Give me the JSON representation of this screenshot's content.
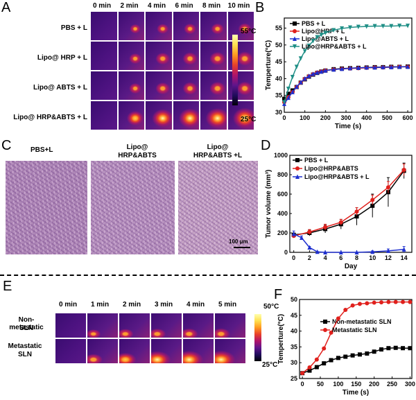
{
  "panels": {
    "A": {
      "label": "A",
      "times": [
        "0 min",
        "2 min",
        "4 min",
        "6 min",
        "8 min",
        "10 min"
      ],
      "rows": [
        "PBS + L",
        "Lipo@ HRP + L",
        "Lipo@ ABTS + L",
        "Lipo@ HRP&ABTS + L"
      ],
      "scale_max": "55°C",
      "scale_min": "25°C"
    },
    "B": {
      "label": "B"
    },
    "C": {
      "label": "C",
      "titles": [
        "PBS+L",
        "Lipo@\nHRP&ABTS",
        "Lipo@\nHRP&ABTS +L"
      ],
      "title1": "PBS+L",
      "title2a": "Lipo@",
      "title2b": "HRP&ABTS",
      "title3a": "Lipo@",
      "title3b": "HRP&ABTS +L",
      "scalebar": "100 μm"
    },
    "D": {
      "label": "D"
    },
    "E": {
      "label": "E",
      "times": [
        "0 min",
        "1 min",
        "2 min",
        "3 min",
        "4 min",
        "5 min"
      ],
      "row1a": "Non-metastatic",
      "row1b": "SLN",
      "row2a": "Metastatic",
      "row2b": "SLN",
      "scale_max": "50°C",
      "scale_min": "25°C"
    },
    "F": {
      "label": "F"
    }
  },
  "chart_data": [
    {
      "id": "B",
      "type": "line",
      "xlabel": "Time (s)",
      "ylabel": "Temperture(°C)",
      "xlim": [
        0,
        620
      ],
      "ylim": [
        30,
        58
      ],
      "xticks": [
        0,
        100,
        200,
        300,
        400,
        500,
        600
      ],
      "yticks": [
        30,
        35,
        40,
        45,
        50,
        55
      ],
      "legend": "top-right",
      "series": [
        {
          "name": "PBS + L",
          "color": "#000000",
          "marker": "square",
          "x": [
            0,
            20,
            40,
            60,
            80,
            100,
            120,
            140,
            160,
            180,
            200,
            240,
            280,
            320,
            360,
            400,
            440,
            480,
            520,
            560,
            600
          ],
          "y": [
            34,
            35.5,
            36.5,
            37.5,
            38.8,
            39.8,
            40.6,
            41.2,
            41.7,
            42.1,
            42.4,
            42.8,
            43.0,
            43.1,
            43.2,
            43.3,
            43.4,
            43.4,
            43.5,
            43.5,
            43.6
          ]
        },
        {
          "name": "Lipo@HRP + L",
          "color": "#e0201c",
          "marker": "circle",
          "x": [
            0,
            20,
            40,
            60,
            80,
            100,
            120,
            140,
            160,
            180,
            200,
            240,
            280,
            320,
            360,
            400,
            440,
            480,
            520,
            560,
            600
          ],
          "y": [
            33,
            34.5,
            36,
            37.5,
            38.8,
            39.9,
            40.7,
            41.3,
            41.8,
            42.1,
            42.4,
            42.7,
            42.9,
            43.0,
            43.1,
            43.2,
            43.3,
            43.3,
            43.4,
            43.5,
            43.5
          ]
        },
        {
          "name": "Lipo@ABTS + L",
          "color": "#1e2fcf",
          "marker": "triangle",
          "x": [
            0,
            20,
            40,
            60,
            80,
            100,
            120,
            140,
            160,
            180,
            200,
            240,
            280,
            320,
            360,
            400,
            440,
            480,
            520,
            560,
            600
          ],
          "y": [
            32.5,
            34.3,
            36,
            37.6,
            38.9,
            40,
            40.8,
            41.4,
            41.8,
            42.1,
            42.4,
            42.7,
            42.9,
            43.1,
            43.2,
            43.3,
            43.3,
            43.4,
            43.4,
            43.5,
            43.5
          ]
        },
        {
          "name": "Lipo@HRP&ABTS + L",
          "color": "#1f8f86",
          "marker": "triangle-down",
          "x": [
            0,
            20,
            40,
            60,
            80,
            100,
            120,
            140,
            160,
            180,
            200,
            240,
            280,
            320,
            360,
            400,
            440,
            480,
            520,
            560,
            600
          ],
          "y": [
            33,
            37,
            40.5,
            43.5,
            46,
            48.2,
            49.8,
            51.2,
            52.3,
            53,
            53.6,
            54.4,
            54.9,
            55.2,
            55.4,
            55.5,
            55.6,
            55.6,
            55.6,
            55.7,
            55.7
          ]
        }
      ]
    },
    {
      "id": "D",
      "type": "line",
      "xlabel": "Day",
      "ylabel": "Tumor volume (mm³)",
      "xlim": [
        -0.5,
        15
      ],
      "ylim": [
        0,
        1000
      ],
      "xticks": [
        0,
        2,
        4,
        6,
        8,
        10,
        12,
        14
      ],
      "yticks": [
        0,
        200,
        400,
        600,
        800,
        1000
      ],
      "legend": "top-left",
      "series": [
        {
          "name": "PBS + L",
          "color": "#000000",
          "marker": "square",
          "x": [
            0,
            2,
            4,
            6,
            8,
            10,
            12,
            14
          ],
          "y": [
            180,
            200,
            240,
            290,
            370,
            480,
            620,
            840
          ],
          "err": [
            20,
            30,
            40,
            50,
            90,
            120,
            150,
            80
          ]
        },
        {
          "name": "Lipo@HRP&ABTS",
          "color": "#e0201c",
          "marker": "circle",
          "x": [
            0,
            2,
            4,
            6,
            8,
            10,
            12,
            14
          ],
          "y": [
            170,
            210,
            260,
            310,
            420,
            540,
            670,
            850
          ],
          "err": [
            20,
            25,
            30,
            30,
            40,
            50,
            60,
            60
          ]
        },
        {
          "name": "Lipo@HRP&ABTS + L",
          "color": "#1e2fcf",
          "marker": "triangle",
          "x": [
            0,
            1,
            2,
            3,
            4,
            6,
            8,
            10,
            12,
            14
          ],
          "y": [
            190,
            150,
            50,
            5,
            0,
            0,
            0,
            5,
            15,
            30
          ],
          "err": [
            30,
            20,
            10,
            3,
            0,
            0,
            0,
            10,
            20,
            30
          ]
        }
      ]
    },
    {
      "id": "F",
      "type": "line",
      "xlabel": "Time (s)",
      "ylabel": "Temperture(°C)",
      "xlim": [
        -8,
        305
      ],
      "ylim": [
        25,
        50
      ],
      "xticks": [
        0,
        50,
        100,
        150,
        200,
        250,
        300
      ],
      "yticks": [
        25,
        30,
        35,
        40,
        45,
        50
      ],
      "legend": "middle-right",
      "series": [
        {
          "name": "Non-metastatic SLN",
          "color": "#000000",
          "marker": "square",
          "x": [
            0,
            20,
            40,
            60,
            80,
            100,
            120,
            140,
            160,
            180,
            200,
            220,
            240,
            260,
            280,
            300
          ],
          "y": [
            26.7,
            27.5,
            28.6,
            29.8,
            30.8,
            31.5,
            31.9,
            32.3,
            32.6,
            32.9,
            33.5,
            34.2,
            34.6,
            34.7,
            34.6,
            34.6
          ]
        },
        {
          "name": "Metastatic SLN",
          "color": "#e0201c",
          "marker": "circle",
          "x": [
            0,
            20,
            40,
            60,
            80,
            100,
            120,
            140,
            160,
            180,
            200,
            220,
            240,
            260,
            280,
            300
          ],
          "y": [
            26.7,
            28.5,
            31,
            34.5,
            39.5,
            44,
            46.7,
            48.1,
            48.6,
            48.8,
            49,
            49.1,
            49.2,
            49.2,
            49.2,
            49.2
          ]
        }
      ]
    }
  ]
}
